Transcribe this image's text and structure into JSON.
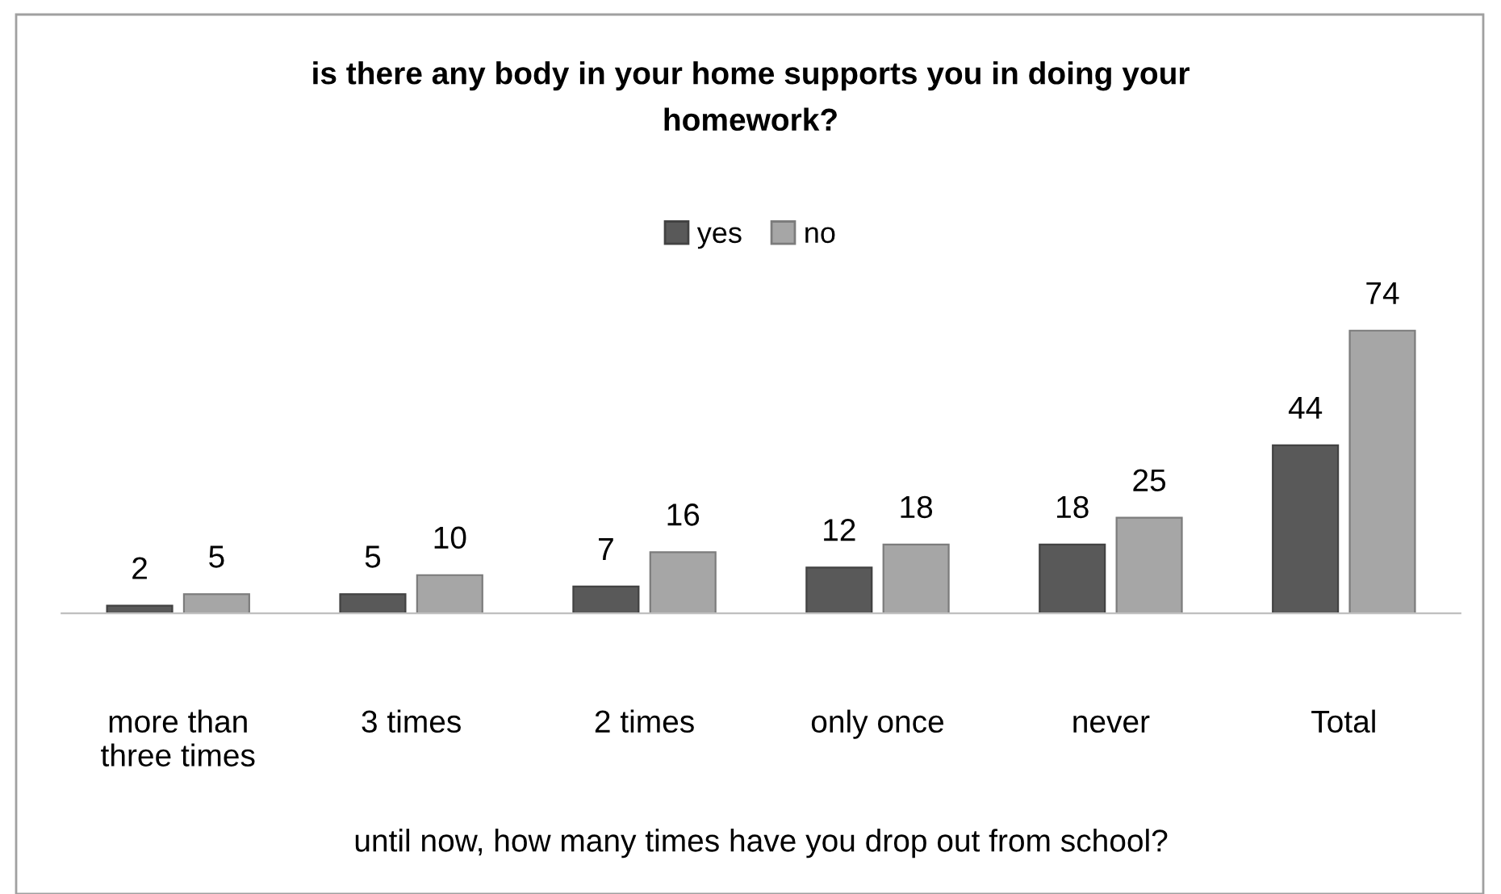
{
  "chart_data": {
    "type": "bar",
    "title": "is there any body in your home supports you in doing your\nhomework?",
    "xlabel": "until now, how many times have you drop out from school?",
    "categories": [
      "more than\nthree times",
      "3 times",
      "2 times",
      "only once",
      "never",
      "Total"
    ],
    "series": [
      {
        "name": "yes",
        "color": "#595959",
        "values": [
          2,
          5,
          7,
          12,
          18,
          44
        ]
      },
      {
        "name": "no",
        "color": "#a6a6a6",
        "values": [
          5,
          10,
          16,
          18,
          25,
          74
        ]
      }
    ],
    "data_labels": true,
    "legend": "top",
    "tick_labels": "x",
    "grid": false
  }
}
